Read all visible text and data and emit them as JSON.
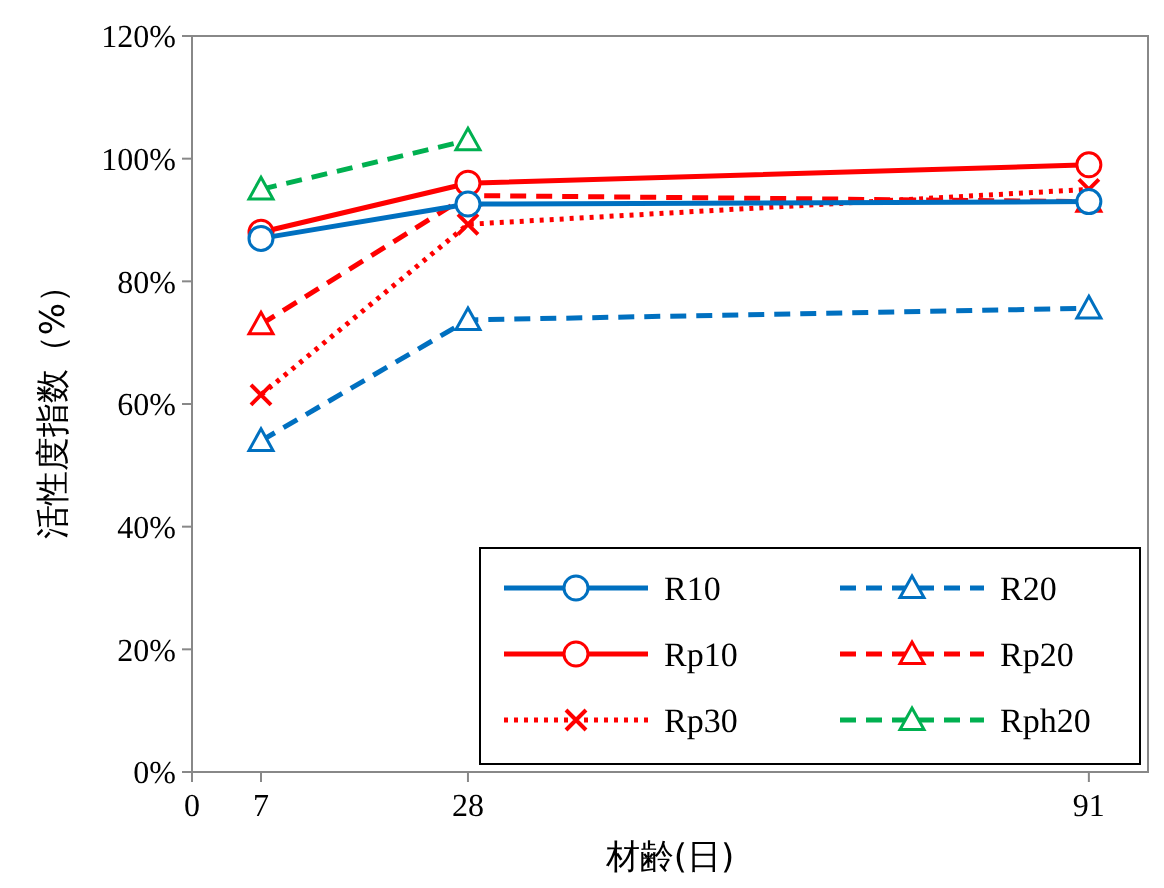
{
  "chart_data": {
    "type": "line",
    "xlabel": "材齢(日)",
    "ylabel": "活性度指数（%）",
    "x": [
      7,
      28,
      91
    ],
    "xlim": [
      0,
      97
    ],
    "xticks": [
      0,
      7,
      28,
      91
    ],
    "ylim": [
      0,
      120
    ],
    "yticks": [
      {
        "value": 0,
        "label": "0%"
      },
      {
        "value": 20,
        "label": "20%"
      },
      {
        "value": 40,
        "label": "40%"
      },
      {
        "value": 60,
        "label": "60%"
      },
      {
        "value": 80,
        "label": "80%"
      },
      {
        "value": 100,
        "label": "100%"
      },
      {
        "value": 120,
        "label": "120%"
      }
    ],
    "grid": false,
    "legend": "bottom right",
    "series": [
      {
        "name": "R10",
        "color": "#0070c0",
        "marker": "circle",
        "line_style": "solid",
        "values": [
          87,
          92.6,
          93
        ]
      },
      {
        "name": "R20",
        "color": "#0070c0",
        "marker": "triangle",
        "line_style": "dashed",
        "values": [
          54,
          73.7,
          75.6
        ]
      },
      {
        "name": "Rp10",
        "color": "#ff0000",
        "marker": "circle",
        "line_style": "solid",
        "values": [
          88,
          96,
          99
        ]
      },
      {
        "name": "Rp20",
        "color": "#ff0000",
        "marker": "triangle",
        "line_style": "dashed",
        "values": [
          73,
          94,
          93
        ]
      },
      {
        "name": "Rp30",
        "color": "#ff0000",
        "marker": "cross",
        "line_style": "dotted",
        "values": [
          61.5,
          89.3,
          95
        ]
      },
      {
        "name": "Rph20",
        "color": "#00b050",
        "marker": "triangle",
        "line_style": "dashed",
        "values": [
          95,
          103,
          null
        ]
      }
    ]
  }
}
